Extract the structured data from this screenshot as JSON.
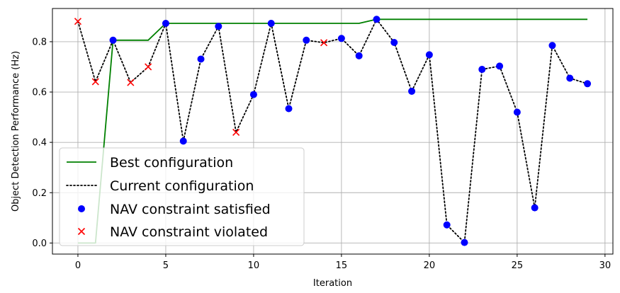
{
  "chart_data": {
    "type": "line",
    "title": "",
    "xlabel": "Iteration",
    "ylabel": "Object Detection Performance (Hz)",
    "xlim": [
      -1.45,
      30.45
    ],
    "ylim": [
      -0.044,
      0.932
    ],
    "xticks": [
      0,
      5,
      10,
      15,
      20,
      25,
      30
    ],
    "yticks": [
      0.0,
      0.2,
      0.4,
      0.6,
      0.8
    ],
    "ytick_labels": [
      "0.0",
      "0.2",
      "0.4",
      "0.6",
      "0.8"
    ],
    "grid": true,
    "legend_position": "lower-left",
    "series": [
      {
        "name": "Best configuration",
        "kind": "line",
        "color": "#008000",
        "x": [
          0,
          1,
          2,
          3,
          4,
          5,
          6,
          7,
          8,
          9,
          10,
          11,
          12,
          13,
          14,
          15,
          16,
          17,
          18,
          19,
          20,
          21,
          22,
          23,
          24,
          25,
          26,
          27,
          28,
          29
        ],
        "values": [
          0.0,
          0.0,
          0.806,
          0.806,
          0.806,
          0.873,
          0.873,
          0.873,
          0.873,
          0.873,
          0.873,
          0.873,
          0.873,
          0.873,
          0.873,
          0.873,
          0.873,
          0.889,
          0.889,
          0.889,
          0.889,
          0.889,
          0.889,
          0.889,
          0.889,
          0.889,
          0.889,
          0.889,
          0.889,
          0.889
        ]
      },
      {
        "name": "Current configuration",
        "kind": "dotted-line",
        "color": "#000000",
        "x": [
          0,
          1,
          2,
          3,
          4,
          5,
          6,
          7,
          8,
          9,
          10,
          11,
          12,
          13,
          14,
          15,
          16,
          17,
          18,
          19,
          20,
          21,
          22,
          23,
          24,
          25,
          26,
          27,
          28,
          29
        ],
        "values": [
          0.881,
          0.641,
          0.806,
          0.638,
          0.7,
          0.873,
          0.405,
          0.731,
          0.861,
          0.44,
          0.59,
          0.873,
          0.534,
          0.806,
          0.796,
          0.813,
          0.744,
          0.889,
          0.797,
          0.603,
          0.748,
          0.072,
          0.002,
          0.69,
          0.703,
          0.52,
          0.14,
          0.785,
          0.655,
          0.633
        ]
      },
      {
        "name": "NAV constraint satisfied",
        "kind": "scatter-dot",
        "color": "#0000ff",
        "x": [
          2,
          5,
          6,
          7,
          8,
          10,
          11,
          12,
          13,
          15,
          16,
          17,
          18,
          19,
          20,
          21,
          22,
          23,
          24,
          25,
          26,
          27,
          28,
          29
        ],
        "values": [
          0.806,
          0.873,
          0.405,
          0.731,
          0.861,
          0.59,
          0.873,
          0.534,
          0.806,
          0.813,
          0.744,
          0.889,
          0.797,
          0.603,
          0.748,
          0.072,
          0.002,
          0.69,
          0.703,
          0.52,
          0.14,
          0.785,
          0.655,
          0.633
        ]
      },
      {
        "name": "NAV constraint violated",
        "kind": "scatter-x",
        "color": "#ff0000",
        "x": [
          0,
          1,
          3,
          4,
          9,
          14
        ],
        "values": [
          0.881,
          0.641,
          0.638,
          0.7,
          0.44,
          0.796
        ]
      }
    ]
  }
}
